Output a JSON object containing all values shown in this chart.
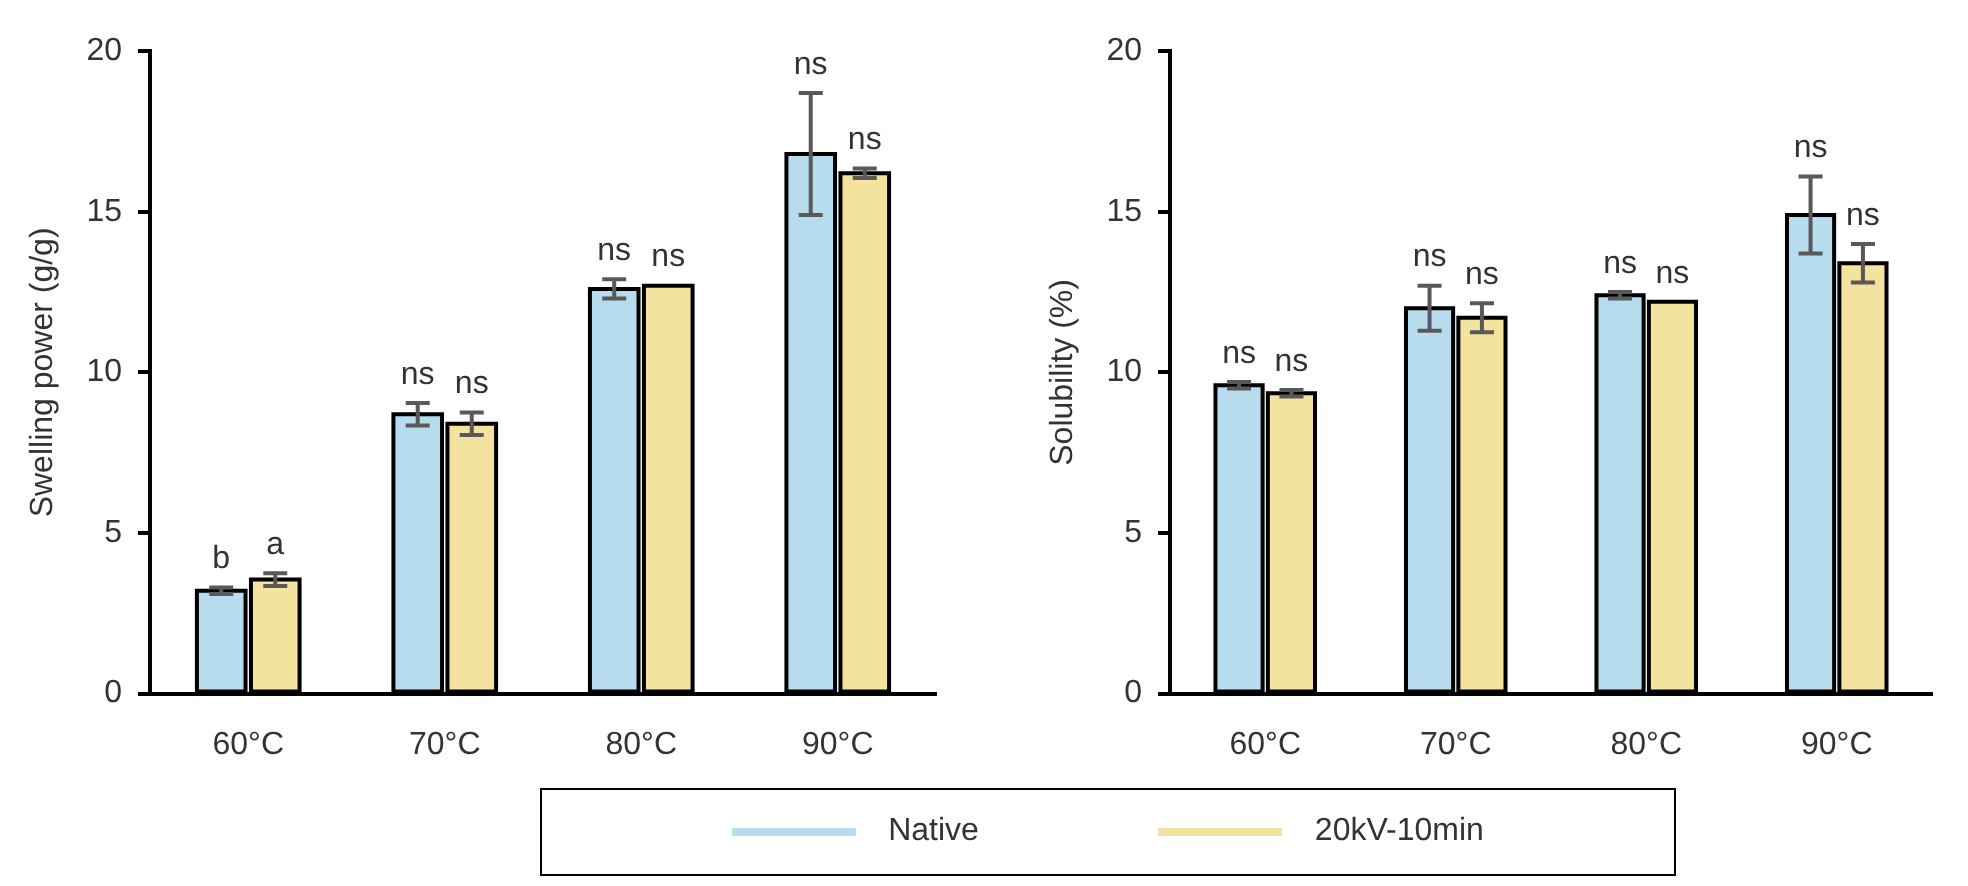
{
  "chart_data": [
    {
      "type": "bar",
      "ylabel": "Swelling power (g/g)",
      "categories": [
        "60°C",
        "70°C",
        "80°C",
        "90°C"
      ],
      "ylim": [
        0,
        20
      ],
      "yticks": [
        0,
        5,
        10,
        15,
        20
      ],
      "grid": false,
      "legend": "bottom",
      "series": [
        {
          "name": "Native",
          "color": "#b7dcee",
          "values": [
            3.2,
            8.7,
            12.6,
            16.8
          ],
          "errors": [
            0.1,
            0.35,
            0.3,
            1.9
          ],
          "value_labels": [
            "b",
            "ns",
            "ns",
            "ns"
          ]
        },
        {
          "name": "20kV-10min",
          "color": "#f4e39f",
          "values": [
            3.55,
            8.4,
            12.7,
            16.2
          ],
          "errors": [
            0.2,
            0.35,
            null,
            0.15
          ],
          "value_labels": [
            "a",
            "ns",
            "ns",
            "ns"
          ]
        }
      ]
    },
    {
      "type": "bar",
      "ylabel": "Solubility (%)",
      "categories": [
        "60°C",
        "70°C",
        "80°C",
        "90°C"
      ],
      "ylim": [
        0,
        20
      ],
      "yticks": [
        0,
        5,
        10,
        15,
        20
      ],
      "grid": false,
      "series": [
        {
          "color": "#b7dcee",
          "values": [
            9.6,
            12.0,
            12.4,
            14.9
          ],
          "errors": [
            0.1,
            0.7,
            0.1,
            1.2
          ],
          "value_labels": [
            "ns",
            "ns",
            "ns",
            "ns"
          ]
        },
        {
          "color": "#f4e39f",
          "values": [
            9.35,
            11.7,
            12.2,
            13.4
          ],
          "errors": [
            0.1,
            0.45,
            null,
            0.6
          ],
          "value_labels": [
            "ns",
            "ns",
            "ns",
            "ns"
          ]
        }
      ]
    }
  ]
}
